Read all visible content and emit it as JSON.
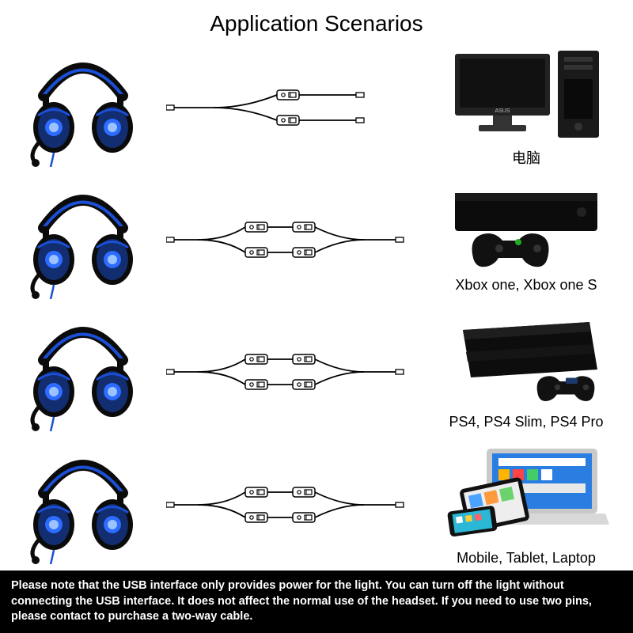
{
  "title": "Application Scenarios",
  "headset": {
    "accent_color": "#1a4fd6",
    "body_color": "#0b0b0b",
    "glow_color": "#2d6cff"
  },
  "cable": {
    "stroke_color": "#000000",
    "splitter_fill": "#ffffff"
  },
  "rows": [
    {
      "label": "电脑",
      "device": "pc",
      "cable_variant": "single"
    },
    {
      "label": "Xbox one, Xbox one S",
      "device": "xbox",
      "cable_variant": "double"
    },
    {
      "label": "PS4, PS4 Slim, PS4 Pro",
      "device": "ps4",
      "cable_variant": "double"
    },
    {
      "label": "Mobile, Tablet, Laptop",
      "device": "mobile",
      "cable_variant": "double"
    }
  ],
  "footer_text": "Please note that the USB interface only provides power for the light. You can turn off the light without connecting the USB interface. It does not affect the normal use of the headset. If you need to use two pins, please contact to purchase a two-way cable.",
  "device_styles": {
    "pc": {
      "screen": "#111",
      "bezel": "#222",
      "stand": "#333",
      "tower": "#1a1a1a"
    },
    "xbox": {
      "body": "#0c0c0c",
      "pad": "#111"
    },
    "ps4": {
      "body": "#0d0d0d",
      "pad": "#111"
    },
    "mobile": {
      "laptop": "#c9c9c9",
      "screen": "#2a7de1",
      "tablet": "#eee",
      "phone": "#111"
    }
  }
}
